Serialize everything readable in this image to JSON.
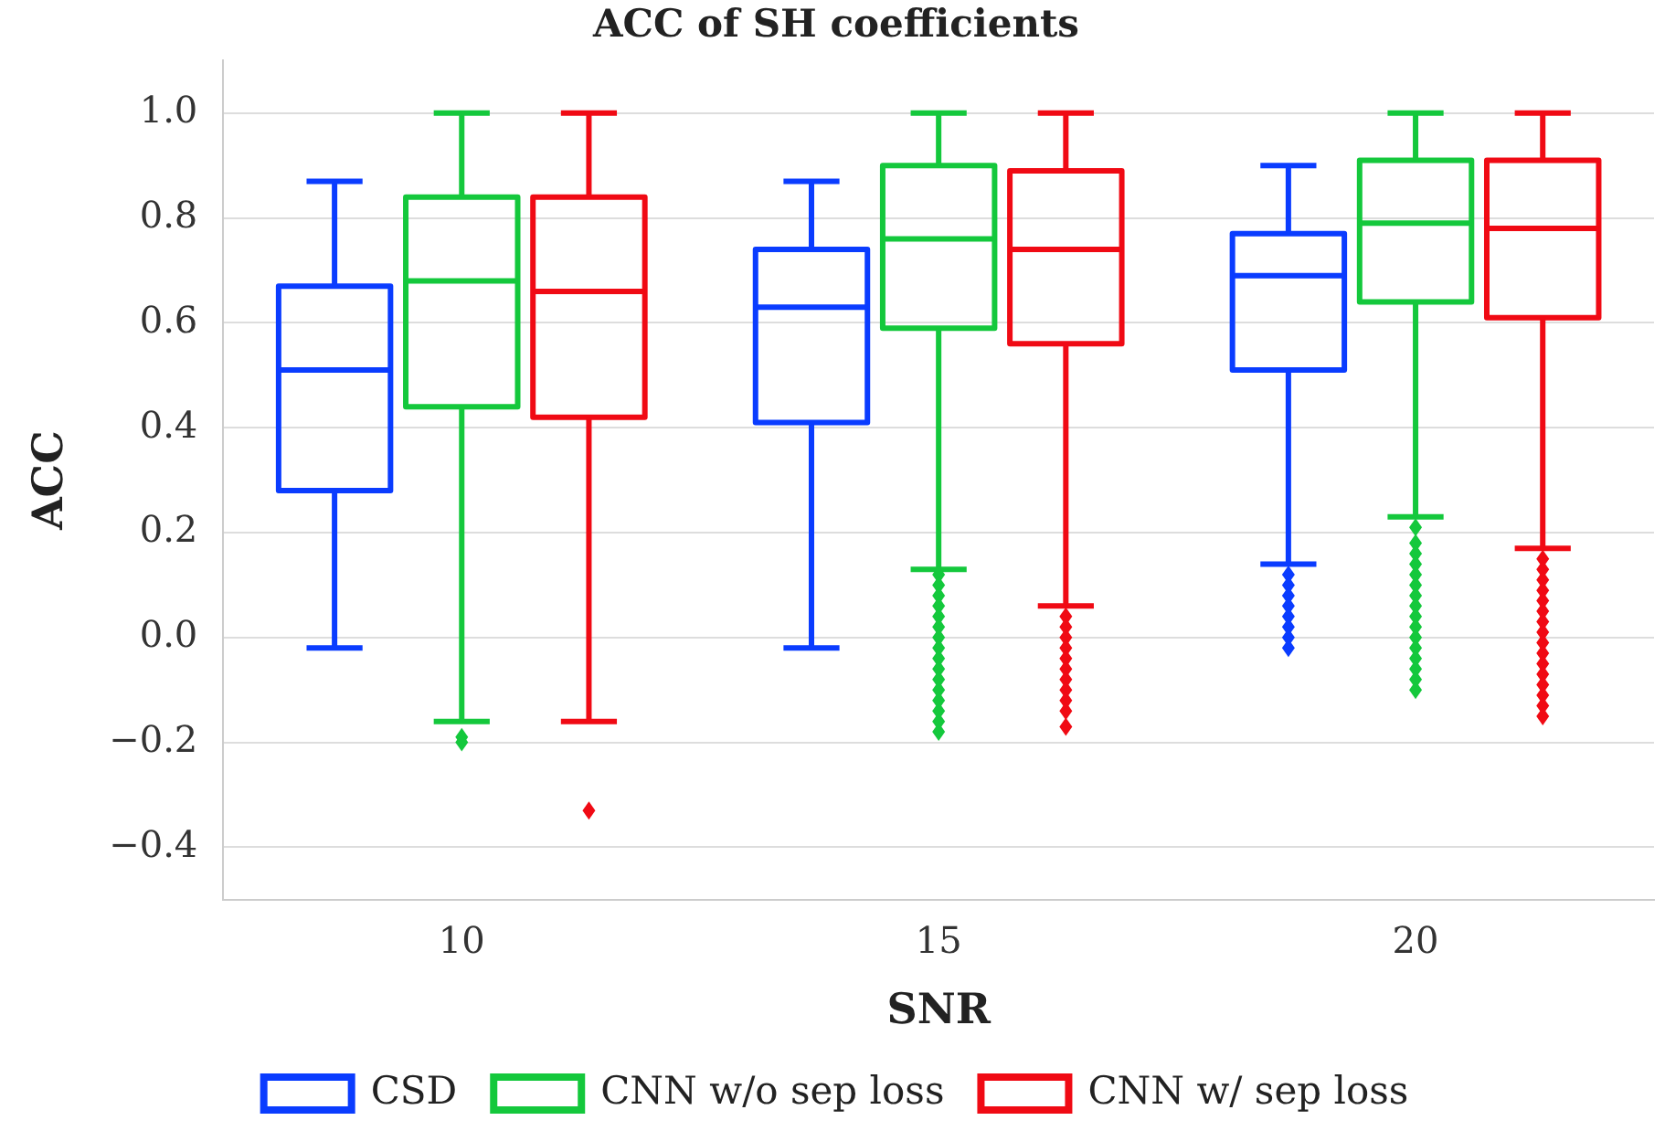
{
  "chart_data": {
    "type": "box",
    "title": "ACC of SH coefficients",
    "xlabel": "SNR",
    "ylabel": "ACC",
    "categories": [
      "10",
      "15",
      "20"
    ],
    "series": [
      {
        "name": "CSD",
        "color": "#0a3cff",
        "boxes": [
          {
            "low": -0.02,
            "q1": 0.28,
            "median": 0.51,
            "q3": 0.67,
            "high": 0.87
          },
          {
            "low": -0.02,
            "q1": 0.41,
            "median": 0.63,
            "q3": 0.74,
            "high": 0.87
          },
          {
            "low": 0.14,
            "q1": 0.51,
            "median": 0.69,
            "q3": 0.77,
            "high": 0.9,
            "outliers": [
              0.12,
              0.1,
              0.08,
              0.06,
              0.04,
              0.02,
              0.0,
              -0.02
            ]
          }
        ]
      },
      {
        "name": "CNN w/o sep loss",
        "color": "#14c83c",
        "boxes": [
          {
            "low": -0.16,
            "q1": 0.44,
            "median": 0.68,
            "q3": 0.84,
            "high": 1.0,
            "outliers": [
              -0.19,
              -0.2
            ]
          },
          {
            "low": 0.13,
            "q1": 0.59,
            "median": 0.76,
            "q3": 0.9,
            "high": 1.0,
            "outliers": [
              0.12,
              0.1,
              0.08,
              0.06,
              0.04,
              0.02,
              0.0,
              -0.02,
              -0.04,
              -0.06,
              -0.08,
              -0.1,
              -0.12,
              -0.14,
              -0.16,
              -0.18
            ]
          },
          {
            "low": 0.23,
            "q1": 0.64,
            "median": 0.79,
            "q3": 0.91,
            "high": 1.0,
            "outliers": [
              0.21,
              0.18,
              0.16,
              0.14,
              0.12,
              0.1,
              0.08,
              0.06,
              0.04,
              0.02,
              0.0,
              -0.02,
              -0.04,
              -0.06,
              -0.08,
              -0.1
            ]
          }
        ]
      },
      {
        "name": "CNN w/ sep loss",
        "color": "#f00a14",
        "boxes": [
          {
            "low": -0.16,
            "q1": 0.42,
            "median": 0.66,
            "q3": 0.84,
            "high": 1.0,
            "outliers": [
              -0.33
            ]
          },
          {
            "low": 0.06,
            "q1": 0.56,
            "median": 0.74,
            "q3": 0.89,
            "high": 1.0,
            "outliers": [
              0.04,
              0.02,
              0.0,
              -0.02,
              -0.04,
              -0.06,
              -0.08,
              -0.1,
              -0.12,
              -0.14,
              -0.17
            ]
          },
          {
            "low": 0.17,
            "q1": 0.61,
            "median": 0.78,
            "q3": 0.91,
            "high": 1.0,
            "outliers": [
              0.15,
              0.13,
              0.11,
              0.09,
              0.07,
              0.05,
              0.03,
              0.01,
              -0.01,
              -0.03,
              -0.05,
              -0.07,
              -0.09,
              -0.11,
              -0.13,
              -0.15
            ]
          }
        ]
      }
    ],
    "ylim": [
      -0.5,
      1.1
    ],
    "yticks": [
      {
        "value": -0.4,
        "label": "−0.4"
      },
      {
        "value": -0.2,
        "label": "−0.2"
      },
      {
        "value": 0,
        "label": "0.0"
      },
      {
        "value": 0.2,
        "label": "0.2"
      },
      {
        "value": 0.4,
        "label": "0.4"
      },
      {
        "value": 0.6,
        "label": "0.6"
      },
      {
        "value": 0.8,
        "label": "0.8"
      },
      {
        "value": 1,
        "label": "1.0"
      }
    ],
    "grid": "y",
    "legend": "bottom",
    "marker": "diamond"
  }
}
